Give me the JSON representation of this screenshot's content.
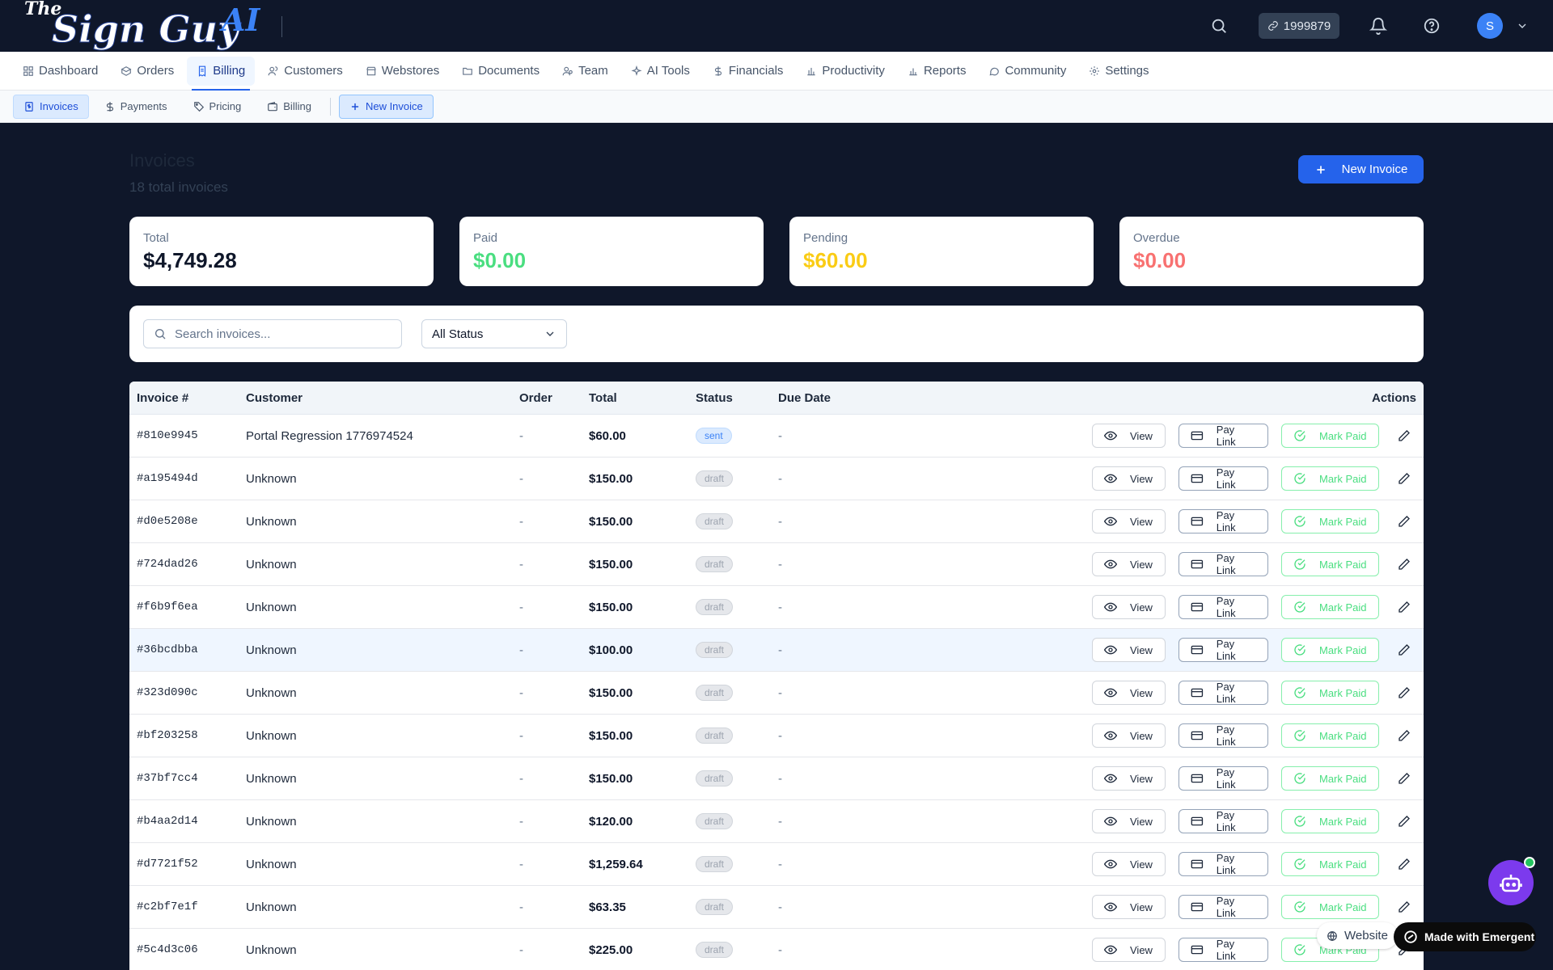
{
  "topbar": {
    "logo_text": "The Sign Guy AI",
    "credits": "1999879",
    "avatar_initial": "S"
  },
  "main_nav": [
    {
      "label": "Dashboard",
      "icon": "grid-icon"
    },
    {
      "label": "Orders",
      "icon": "box-icon"
    },
    {
      "label": "Billing",
      "icon": "receipt-icon",
      "active": true
    },
    {
      "label": "Customers",
      "icon": "users-icon"
    },
    {
      "label": "Webstores",
      "icon": "store-icon"
    },
    {
      "label": "Documents",
      "icon": "folder-icon"
    },
    {
      "label": "Team",
      "icon": "team-icon"
    },
    {
      "label": "AI Tools",
      "icon": "sparkles-icon"
    },
    {
      "label": "Financials",
      "icon": "dollar-icon"
    },
    {
      "label": "Productivity",
      "icon": "bar-chart-icon"
    },
    {
      "label": "Reports",
      "icon": "bar-chart-icon"
    },
    {
      "label": "Community",
      "icon": "chat-icon"
    },
    {
      "label": "Settings",
      "icon": "gear-icon"
    }
  ],
  "sub_nav": {
    "invoices": "Invoices",
    "payments": "Payments",
    "pricing": "Pricing",
    "billing": "Billing",
    "new_invoice": "New Invoice"
  },
  "page": {
    "title": "Invoices",
    "subtitle": "18 total invoices",
    "new_button": "New Invoice"
  },
  "stats": {
    "total": {
      "label": "Total",
      "value": "$4,749.28"
    },
    "paid": {
      "label": "Paid",
      "value": "$0.00"
    },
    "pending": {
      "label": "Pending",
      "value": "$60.00"
    },
    "overdue": {
      "label": "Overdue",
      "value": "$0.00"
    }
  },
  "colors": {
    "paid": "#4ade80",
    "pending": "#facc15",
    "overdue": "#f87171",
    "primary": "#2563eb"
  },
  "filters": {
    "search_placeholder": "Search invoices...",
    "status_selected": "All Status"
  },
  "table": {
    "headers": {
      "invoice": "Invoice #",
      "customer": "Customer",
      "order": "Order",
      "total": "Total",
      "status": "Status",
      "due": "Due Date",
      "actions": "Actions"
    },
    "action_labels": {
      "view": "View",
      "pay": "Pay Link",
      "mark": "Mark Paid"
    },
    "rows": [
      {
        "invoice": "#810e9945",
        "customer": "Portal Regression 1776974524",
        "order": "-",
        "total": "$60.00",
        "status": "sent",
        "due": "-"
      },
      {
        "invoice": "#a195494d",
        "customer": "Unknown",
        "order": "-",
        "total": "$150.00",
        "status": "draft",
        "due": "-"
      },
      {
        "invoice": "#d0e5208e",
        "customer": "Unknown",
        "order": "-",
        "total": "$150.00",
        "status": "draft",
        "due": "-"
      },
      {
        "invoice": "#724dad26",
        "customer": "Unknown",
        "order": "-",
        "total": "$150.00",
        "status": "draft",
        "due": "-"
      },
      {
        "invoice": "#f6b9f6ea",
        "customer": "Unknown",
        "order": "-",
        "total": "$150.00",
        "status": "draft",
        "due": "-"
      },
      {
        "invoice": "#36bcdbba",
        "customer": "Unknown",
        "order": "-",
        "total": "$100.00",
        "status": "draft",
        "due": "-"
      },
      {
        "invoice": "#323d090c",
        "customer": "Unknown",
        "order": "-",
        "total": "$150.00",
        "status": "draft",
        "due": "-"
      },
      {
        "invoice": "#bf203258",
        "customer": "Unknown",
        "order": "-",
        "total": "$150.00",
        "status": "draft",
        "due": "-"
      },
      {
        "invoice": "#37bf7cc4",
        "customer": "Unknown",
        "order": "-",
        "total": "$150.00",
        "status": "draft",
        "due": "-"
      },
      {
        "invoice": "#b4aa2d14",
        "customer": "Unknown",
        "order": "-",
        "total": "$120.00",
        "status": "draft",
        "due": "-"
      },
      {
        "invoice": "#d7721f52",
        "customer": "Unknown",
        "order": "-",
        "total": "$1,259.64",
        "status": "draft",
        "due": "-"
      },
      {
        "invoice": "#c2bf7e1f",
        "customer": "Unknown",
        "order": "-",
        "total": "$63.35",
        "status": "draft",
        "due": "-"
      },
      {
        "invoice": "#5c4d3c06",
        "customer": "Unknown",
        "order": "-",
        "total": "$225.00",
        "status": "draft",
        "due": "-"
      }
    ]
  },
  "floating": {
    "website_label": "Website",
    "emergent_label": "Made with Emergent"
  }
}
